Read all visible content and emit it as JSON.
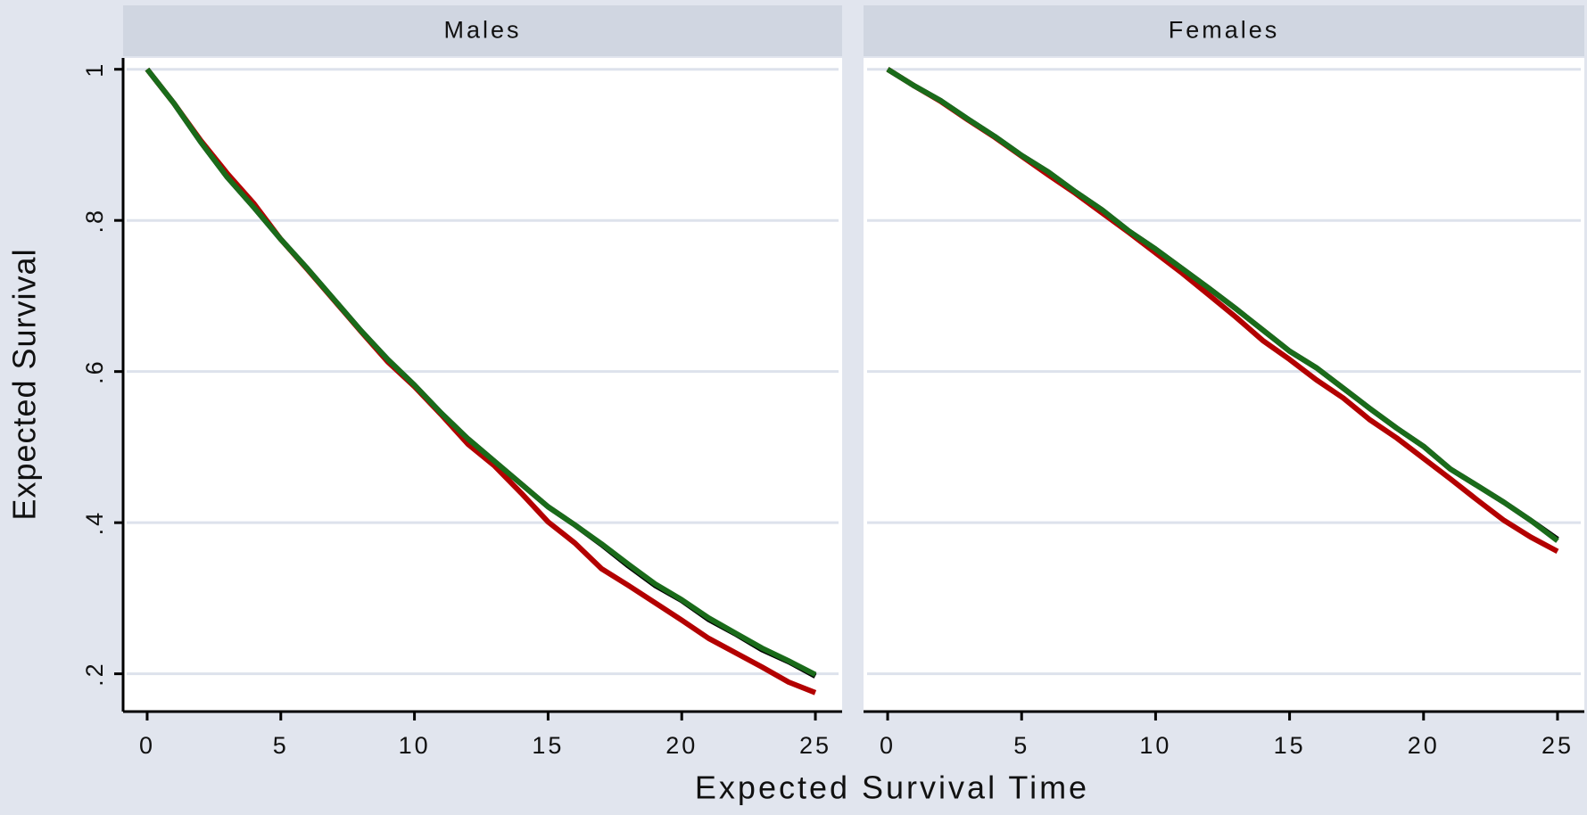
{
  "chart_data": {
    "type": "line",
    "xlabel": "Expected Survival Time",
    "ylabel": "Expected Survival",
    "x": [
      0,
      1,
      2,
      3,
      4,
      5,
      6,
      7,
      8,
      9,
      10,
      11,
      12,
      13,
      14,
      15,
      16,
      17,
      18,
      19,
      20,
      21,
      22,
      23,
      24,
      25
    ],
    "xlim": [
      -0.9,
      26
    ],
    "xticks": [
      0,
      5,
      10,
      15,
      20,
      25
    ],
    "ylim": [
      0.15,
      1.015
    ],
    "yticks": [
      {
        "value": 0.2,
        "label": ".2"
      },
      {
        "value": 0.4,
        "label": ".4"
      },
      {
        "value": 0.6,
        "label": ".6"
      },
      {
        "value": 0.8,
        "label": ".8"
      },
      1
    ],
    "grid": true,
    "panels": [
      {
        "title": "Males",
        "series": [
          {
            "color": "#000000",
            "values": [
              1.0,
              0.955,
              0.904,
              0.857,
              0.817,
              0.775,
              0.736,
              0.695,
              0.654,
              0.616,
              0.582,
              0.545,
              0.511,
              0.481,
              0.451,
              0.421,
              0.397,
              0.371,
              0.343,
              0.317,
              0.297,
              0.272,
              0.253,
              0.232,
              0.216,
              0.197
            ]
          },
          {
            "color": "#b30000",
            "values": [
              1.0,
              0.955,
              0.906,
              0.862,
              0.822,
              0.775,
              0.735,
              0.694,
              0.653,
              0.613,
              0.58,
              0.543,
              0.504,
              0.475,
              0.439,
              0.401,
              0.373,
              0.339,
              0.317,
              0.294,
              0.271,
              0.247,
              0.228,
              0.209,
              0.189,
              0.175
            ]
          },
          {
            "color": "#1a6b1a",
            "values": [
              1.0,
              0.955,
              0.904,
              0.857,
              0.817,
              0.775,
              0.736,
              0.695,
              0.654,
              0.616,
              0.582,
              0.545,
              0.511,
              0.481,
              0.451,
              0.421,
              0.397,
              0.372,
              0.345,
              0.319,
              0.298,
              0.274,
              0.254,
              0.234,
              0.217,
              0.199
            ]
          }
        ]
      },
      {
        "title": "Females",
        "series": [
          {
            "color": "#000000",
            "values": [
              1.0,
              0.978,
              0.958,
              0.934,
              0.911,
              0.886,
              0.864,
              0.838,
              0.814,
              0.786,
              0.762,
              0.736,
              0.71,
              0.683,
              0.655,
              0.627,
              0.605,
              0.578,
              0.551,
              0.525,
              0.501,
              0.471,
              0.449,
              0.427,
              0.403,
              0.378
            ]
          },
          {
            "color": "#b30000",
            "values": [
              1.0,
              0.978,
              0.957,
              0.933,
              0.91,
              0.885,
              0.86,
              0.836,
              0.81,
              0.784,
              0.757,
              0.73,
              0.701,
              0.672,
              0.641,
              0.616,
              0.589,
              0.565,
              0.536,
              0.512,
              0.485,
              0.458,
              0.43,
              0.403,
              0.381,
              0.362
            ]
          },
          {
            "color": "#1a6b1a",
            "values": [
              1.0,
              0.978,
              0.958,
              0.934,
              0.911,
              0.886,
              0.864,
              0.838,
              0.814,
              0.786,
              0.762,
              0.736,
              0.71,
              0.683,
              0.655,
              0.627,
              0.605,
              0.578,
              0.551,
              0.525,
              0.501,
              0.471,
              0.449,
              0.427,
              0.403,
              0.376
            ]
          }
        ]
      }
    ]
  }
}
